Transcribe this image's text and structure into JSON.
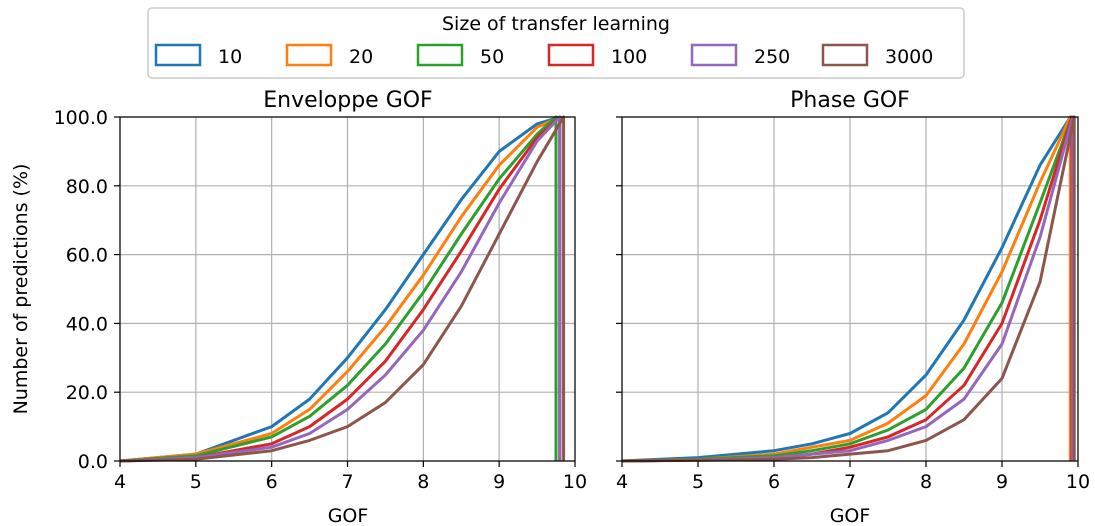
{
  "legend": {
    "title": "Size of transfer learning",
    "placement": "top-center",
    "entries": [
      {
        "label": "10",
        "color": "#1f77b4"
      },
      {
        "label": "20",
        "color": "#ff7f0e"
      },
      {
        "label": "50",
        "color": "#2ca02c"
      },
      {
        "label": "100",
        "color": "#d62728"
      },
      {
        "label": "250",
        "color": "#9467bd"
      },
      {
        "label": "3000",
        "color": "#8c564b"
      }
    ]
  },
  "chart_data": [
    {
      "type": "line",
      "title": "Enveloppe GOF",
      "xlabel": "GOF",
      "ylabel": "Number of predictions (%)",
      "xlim": [
        4,
        10
      ],
      "ylim": [
        0,
        100
      ],
      "x_ticks": [
        "4",
        "5",
        "6",
        "7",
        "8",
        "9",
        "10"
      ],
      "y_ticks": [
        "0.0",
        "20.0",
        "40.0",
        "60.0",
        "80.0",
        "100.0"
      ],
      "grid": true,
      "series": [
        {
          "name": "10",
          "color": "#1f77b4",
          "x": [
            4,
            5,
            6,
            6.5,
            7,
            7.5,
            8,
            8.5,
            9,
            9.5,
            9.8,
            9.8
          ],
          "y": [
            0,
            2,
            10,
            18,
            30,
            44,
            60,
            76,
            90,
            98,
            100,
            0
          ]
        },
        {
          "name": "20",
          "color": "#ff7f0e",
          "x": [
            4,
            5,
            6,
            6.5,
            7,
            7.5,
            8,
            8.5,
            9,
            9.5,
            9.8,
            9.8
          ],
          "y": [
            0,
            2,
            8,
            15,
            26,
            39,
            54,
            71,
            86,
            97,
            100,
            0
          ]
        },
        {
          "name": "50",
          "color": "#2ca02c",
          "x": [
            4,
            5,
            6,
            6.5,
            7,
            7.5,
            8,
            8.5,
            9,
            9.5,
            9.75,
            9.75
          ],
          "y": [
            0,
            1.5,
            7,
            13,
            22,
            34,
            49,
            66,
            82,
            95,
            100,
            0
          ]
        },
        {
          "name": "100",
          "color": "#d62728",
          "x": [
            4,
            5,
            6,
            6.5,
            7,
            7.5,
            8,
            8.5,
            9,
            9.5,
            9.8,
            9.8
          ],
          "y": [
            0,
            1,
            5,
            10,
            18,
            29,
            44,
            61,
            79,
            94,
            100,
            0
          ]
        },
        {
          "name": "250",
          "color": "#9467bd",
          "x": [
            4,
            5,
            6,
            6.5,
            7,
            7.5,
            8,
            8.5,
            9,
            9.5,
            9.8,
            9.8
          ],
          "y": [
            0,
            1,
            4,
            8,
            15,
            25,
            38,
            55,
            75,
            93,
            100,
            0
          ]
        },
        {
          "name": "3000",
          "color": "#8c564b",
          "x": [
            4,
            5,
            6,
            6.5,
            7,
            7.5,
            8,
            8.5,
            9,
            9.5,
            9.85,
            9.85
          ],
          "y": [
            0,
            0.5,
            3,
            6,
            10,
            17,
            28,
            45,
            66,
            87,
            100,
            0
          ]
        }
      ]
    },
    {
      "type": "line",
      "title": "Phase GOF",
      "xlabel": "GOF",
      "ylabel": "",
      "xlim": [
        4,
        10
      ],
      "ylim": [
        0,
        100
      ],
      "x_ticks": [
        "4",
        "5",
        "6",
        "7",
        "8",
        "9",
        "10"
      ],
      "y_ticks": [
        "0.0",
        "20.0",
        "40.0",
        "60.0",
        "80.0",
        "100.0"
      ],
      "grid": true,
      "series": [
        {
          "name": "10",
          "color": "#1f77b4",
          "x": [
            4,
            5,
            6,
            6.5,
            7,
            7.5,
            8,
            8.5,
            9,
            9.5,
            9.9,
            9.9
          ],
          "y": [
            0,
            1,
            3,
            5,
            8,
            14,
            25,
            41,
            62,
            86,
            100,
            0
          ]
        },
        {
          "name": "20",
          "color": "#ff7f0e",
          "x": [
            4,
            5,
            6,
            6.5,
            7,
            7.5,
            8,
            8.5,
            9,
            9.5,
            9.9,
            9.9
          ],
          "y": [
            0,
            0.5,
            2,
            4,
            6,
            11,
            19,
            34,
            55,
            81,
            100,
            0
          ]
        },
        {
          "name": "50",
          "color": "#2ca02c",
          "x": [
            4,
            5,
            6,
            6.5,
            7,
            7.5,
            8,
            8.5,
            9,
            9.5,
            9.92,
            9.92
          ],
          "y": [
            0,
            0.5,
            1.5,
            3,
            5,
            9,
            15,
            27,
            46,
            75,
            100,
            0
          ]
        },
        {
          "name": "100",
          "color": "#d62728",
          "x": [
            4,
            5,
            6,
            6.5,
            7,
            7.5,
            8,
            8.5,
            9,
            9.5,
            9.92,
            9.92
          ],
          "y": [
            0,
            0.3,
            1,
            2,
            4,
            7,
            12,
            22,
            40,
            70,
            100,
            0
          ]
        },
        {
          "name": "250",
          "color": "#9467bd",
          "x": [
            4,
            5,
            6,
            6.5,
            7,
            7.5,
            8,
            8.5,
            9,
            9.5,
            9.93,
            9.93
          ],
          "y": [
            0,
            0.3,
            1,
            2,
            3,
            6,
            10,
            18,
            34,
            65,
            100,
            0
          ]
        },
        {
          "name": "3000",
          "color": "#8c564b",
          "x": [
            4,
            5,
            6,
            6.5,
            7,
            7.5,
            8,
            8.5,
            9,
            9.5,
            9.95,
            9.95
          ],
          "y": [
            0,
            0.2,
            0.5,
            1,
            2,
            3,
            6,
            12,
            24,
            52,
            100,
            0
          ]
        }
      ]
    }
  ]
}
